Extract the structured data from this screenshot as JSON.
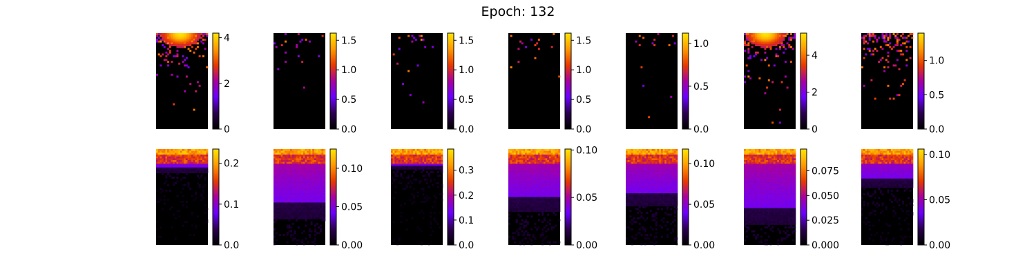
{
  "figure": {
    "title": "Epoch: 132",
    "colormap": "gnuplot",
    "colormap_stops": [
      "#000000",
      "#2b0050",
      "#6a00ff",
      "#a800a0",
      "#e83a00",
      "#ff9a00",
      "#ffe600"
    ]
  },
  "chart_data": [
    {
      "type": "heatmap",
      "row": 1,
      "col": 1,
      "ylim": [
        0,
        4.2
      ],
      "tick_labels": [
        "0",
        "2",
        "4"
      ],
      "tick_values": [
        0,
        2,
        4
      ],
      "pattern": "sparse",
      "density": 0.55,
      "hotspot": 0.45
    },
    {
      "type": "heatmap",
      "row": 1,
      "col": 2,
      "ylim": [
        0,
        1.62
      ],
      "tick_labels": [
        "0.0",
        "0.5",
        "1.0",
        "1.5"
      ],
      "tick_values": [
        0,
        0.5,
        1.0,
        1.5
      ],
      "pattern": "sparse",
      "density": 0.05,
      "hotspot": -1
    },
    {
      "type": "heatmap",
      "row": 1,
      "col": 3,
      "ylim": [
        0,
        1.62
      ],
      "tick_labels": [
        "0.0",
        "0.5",
        "1.0",
        "1.5"
      ],
      "tick_values": [
        0,
        0.5,
        1.0,
        1.5
      ],
      "pattern": "sparse",
      "density": 0.06,
      "hotspot": -1
    },
    {
      "type": "heatmap",
      "row": 1,
      "col": 4,
      "ylim": [
        0,
        1.62
      ],
      "tick_labels": [
        "0.0",
        "0.5",
        "1.0",
        "1.5"
      ],
      "tick_values": [
        0,
        0.5,
        1.0,
        1.5
      ],
      "pattern": "sparse",
      "density": 0.04,
      "hotspot": -1
    },
    {
      "type": "heatmap",
      "row": 1,
      "col": 5,
      "ylim": [
        0,
        1.12
      ],
      "tick_labels": [
        "0.0",
        "0.5",
        "1.0"
      ],
      "tick_values": [
        0,
        0.5,
        1.0
      ],
      "pattern": "sparse",
      "density": 0.06,
      "hotspot": -1
    },
    {
      "type": "heatmap",
      "row": 1,
      "col": 6,
      "ylim": [
        0,
        5.2
      ],
      "tick_labels": [
        "0",
        "2",
        "4"
      ],
      "tick_values": [
        0,
        2,
        4
      ],
      "pattern": "sparse",
      "density": 0.6,
      "hotspot": 0.4
    },
    {
      "type": "heatmap",
      "row": 1,
      "col": 7,
      "ylim": [
        0,
        1.4
      ],
      "tick_labels": [
        "0.0",
        "0.5",
        "1.0"
      ],
      "tick_values": [
        0,
        0.5,
        1.0
      ],
      "pattern": "sparse",
      "density": 0.5,
      "hotspot": -1
    },
    {
      "type": "heatmap",
      "row": 2,
      "col": 1,
      "ylim": [
        0,
        0.235
      ],
      "tick_labels": [
        "0.0",
        "0.1",
        "0.2"
      ],
      "tick_values": [
        0,
        0.1,
        0.2
      ],
      "pattern": "dense",
      "depth": 0.18
    },
    {
      "type": "heatmap",
      "row": 2,
      "col": 2,
      "ylim": [
        0,
        0.125
      ],
      "tick_labels": [
        "0.00",
        "0.05",
        "0.10"
      ],
      "tick_values": [
        0,
        0.05,
        0.1
      ],
      "pattern": "dense",
      "depth": 0.55
    },
    {
      "type": "heatmap",
      "row": 2,
      "col": 3,
      "ylim": [
        0,
        0.385
      ],
      "tick_labels": [
        "0.0",
        "0.1",
        "0.2",
        "0.3"
      ],
      "tick_values": [
        0,
        0.1,
        0.2,
        0.3
      ],
      "pattern": "dense",
      "depth": 0.16
    },
    {
      "type": "heatmap",
      "row": 2,
      "col": 4,
      "ylim": [
        0,
        0.101
      ],
      "tick_labels": [
        "0.00",
        "0.05",
        "0.10"
      ],
      "tick_values": [
        0,
        0.05,
        0.1
      ],
      "pattern": "dense",
      "depth": 0.5
    },
    {
      "type": "heatmap",
      "row": 2,
      "col": 5,
      "ylim": [
        0,
        0.118
      ],
      "tick_labels": [
        "0.00",
        "0.05",
        "0.10"
      ],
      "tick_values": [
        0,
        0.05,
        0.1
      ],
      "pattern": "dense",
      "depth": 0.45
    },
    {
      "type": "heatmap",
      "row": 2,
      "col": 6,
      "ylim": [
        0,
        0.097
      ],
      "tick_labels": [
        "0.000",
        "0.025",
        "0.050",
        "0.075"
      ],
      "tick_values": [
        0,
        0.025,
        0.05,
        0.075
      ],
      "pattern": "dense",
      "depth": 0.6
    },
    {
      "type": "heatmap",
      "row": 2,
      "col": 7,
      "ylim": [
        0,
        0.106
      ],
      "tick_labels": [
        "0.00",
        "0.05",
        "0.10"
      ],
      "tick_values": [
        0,
        0.05,
        0.1
      ],
      "pattern": "dense",
      "depth": 0.3
    }
  ]
}
